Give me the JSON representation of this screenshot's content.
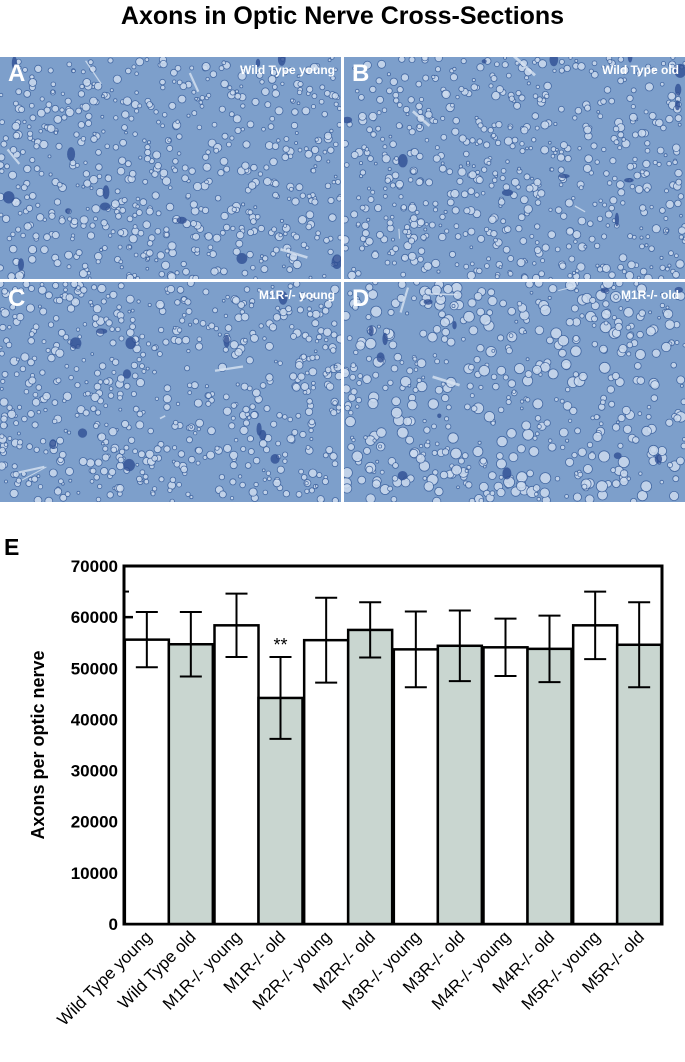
{
  "title": "Axons in Optic Nerve Cross-Sections",
  "panels": [
    {
      "letter": "A",
      "caption": "Wild Type young"
    },
    {
      "letter": "B",
      "caption": "Wild Type old"
    },
    {
      "letter": "C",
      "caption": "M1R-/- young"
    },
    {
      "letter": "D",
      "caption": "M1R-/- old"
    }
  ],
  "colors": {
    "tissue_bg": "#7d9fcb",
    "axon": "#cddcef",
    "cell": "#2f4f94",
    "bar_young": "#ffffff",
    "bar_old": "#c9d6d0"
  },
  "chart_data": {
    "type": "bar",
    "panel_letter": "E",
    "title": "",
    "xlabel": "",
    "ylabel": "Axons per optic nerve",
    "ylim": [
      0,
      70000
    ],
    "yticks": [
      "0",
      "10000",
      "20000",
      "30000",
      "40000",
      "50000",
      "60000",
      "70000"
    ],
    "grid": false,
    "categories": [
      "Wild Type young",
      "Wild Type old",
      "M1R-/- young",
      "M1R-/- old",
      "M2R-/- young",
      "M2R-/- old",
      "M3R-/- young",
      "M3R-/- old",
      "M4R-/- young",
      "M4R-/- old",
      "M5R-/- young",
      "M5R-/- old"
    ],
    "values": [
      55600,
      54700,
      58400,
      44200,
      55500,
      57500,
      53700,
      54400,
      54100,
      53800,
      58400,
      54600
    ],
    "errors": [
      5400,
      6300,
      6200,
      8000,
      8300,
      5400,
      7400,
      6900,
      5600,
      6500,
      6600,
      8300
    ],
    "annotations": [
      {
        "category": "M1R-/- old",
        "text": "**"
      }
    ]
  }
}
